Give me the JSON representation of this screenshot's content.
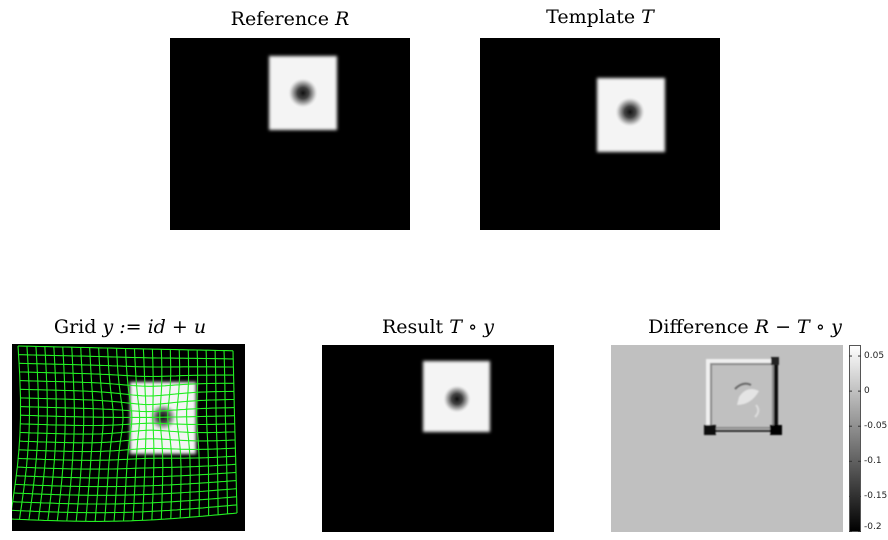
{
  "panels": {
    "reference": {
      "title": "Reference",
      "symbol": "R"
    },
    "template": {
      "title": "Template",
      "symbol": "T"
    },
    "grid": {
      "title": "Grid",
      "formula": "y := id + u"
    },
    "result": {
      "title": "Result",
      "formula": "T ∘ y"
    },
    "difference": {
      "title": "Difference",
      "formula": "R − T ∘ y"
    }
  },
  "colorbar": {
    "ticks": [
      "0.05",
      "0",
      "-0.05",
      "-0.1",
      "-0.15",
      "-0.2"
    ],
    "range": [
      -0.2,
      0.065
    ]
  },
  "colors": {
    "grid_line": "#22ee22",
    "background": "#000000",
    "difference_background": "#c0c0c0"
  }
}
